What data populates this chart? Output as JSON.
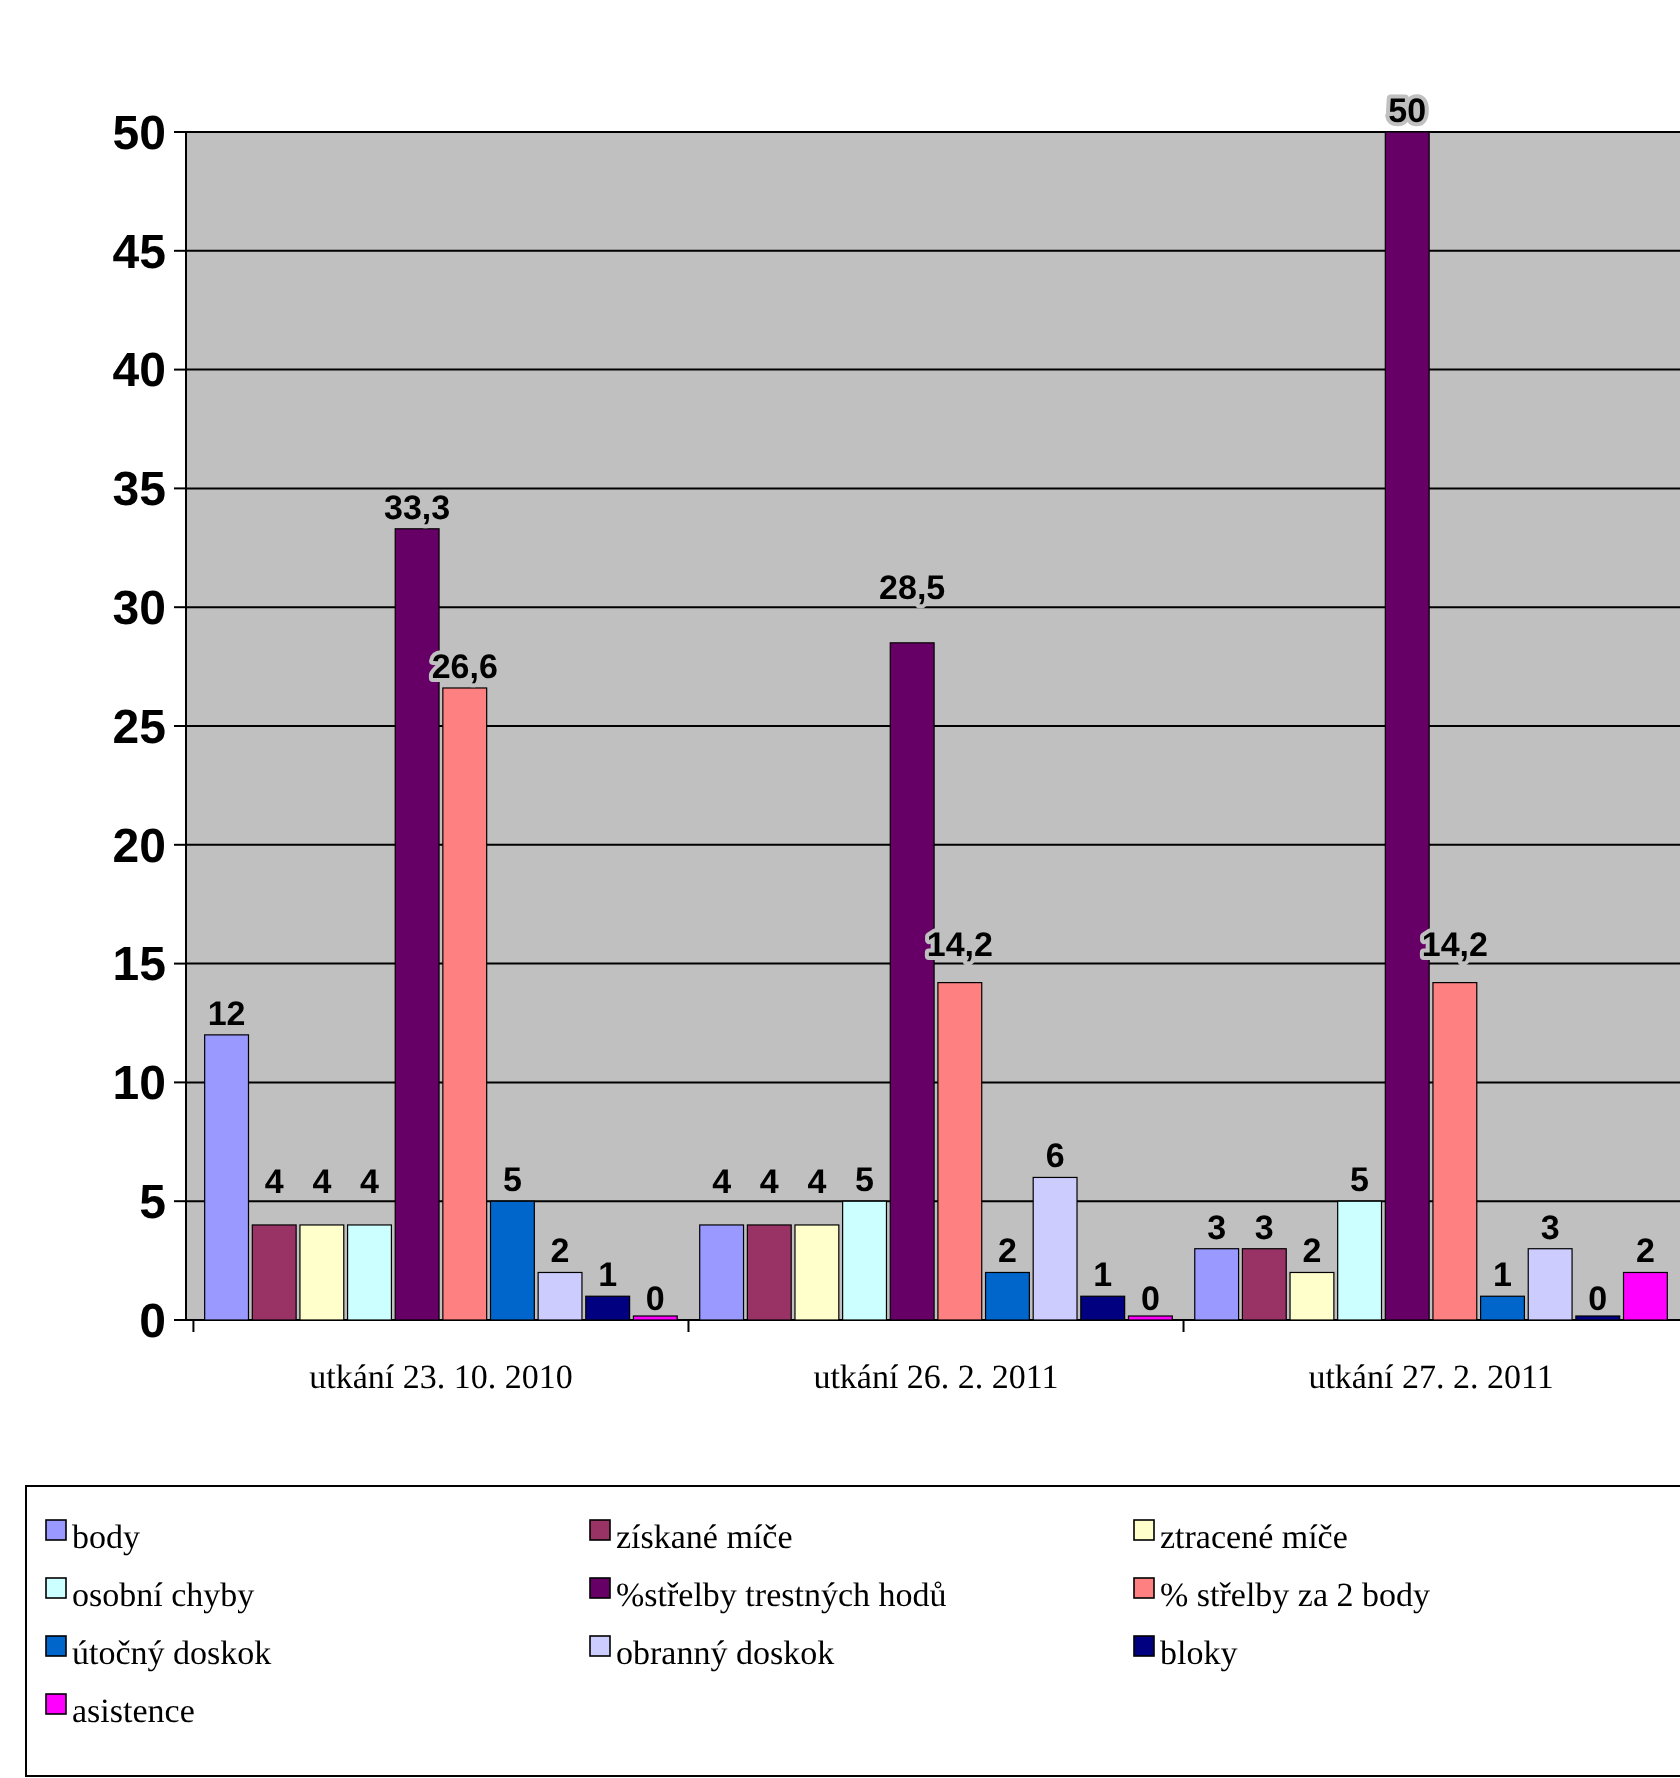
{
  "chart_data": {
    "type": "bar",
    "categories": [
      "utkání 23. 10. 2010",
      "utkání 26. 2. 2011",
      "utkání 27. 2. 2011"
    ],
    "ylim": [
      0,
      50
    ],
    "yticks": [
      0,
      5,
      10,
      15,
      20,
      25,
      30,
      35,
      40,
      45,
      50
    ],
    "grid": "y",
    "legend": "bottom",
    "series": [
      {
        "name": "body",
        "color": "#9999ff",
        "values": [
          12,
          4,
          3
        ],
        "value_labels": [
          "12",
          "4",
          "3"
        ]
      },
      {
        "name": "získané míče",
        "color": "#993366",
        "values": [
          4,
          4,
          3
        ],
        "value_labels": [
          "4",
          "4",
          "3"
        ]
      },
      {
        "name": "ztracené míče",
        "color": "#ffffcc",
        "values": [
          4,
          4,
          2
        ],
        "value_labels": [
          "4",
          "4",
          "2"
        ]
      },
      {
        "name": "osobní chyby",
        "color": "#ccffff",
        "values": [
          4,
          5,
          5
        ],
        "value_labels": [
          "4",
          "5",
          "5"
        ]
      },
      {
        "name": "%střelby trestných hodů",
        "color": "#660066",
        "values": [
          33.3,
          28.5,
          50
        ],
        "value_labels": [
          "33,3",
          "28,5",
          "50"
        ]
      },
      {
        "name": "% střelby za 2 body",
        "color": "#ff8080",
        "values": [
          26.6,
          14.2,
          14.2
        ],
        "value_labels": [
          "26,6",
          "14,2",
          "14,2"
        ]
      },
      {
        "name": "útočný doskok",
        "color": "#0066cc",
        "values": [
          5,
          2,
          1
        ],
        "value_labels": [
          "5",
          "2",
          "1"
        ]
      },
      {
        "name": "obranný doskok",
        "color": "#ccccff",
        "values": [
          2,
          6,
          3
        ],
        "value_labels": [
          "2",
          "6",
          "3"
        ]
      },
      {
        "name": "bloky",
        "color": "#000080",
        "values": [
          1,
          1,
          0
        ],
        "value_labels": [
          "1",
          "1",
          "0"
        ]
      },
      {
        "name": "asistence",
        "color": "#ff00ff",
        "values": [
          0,
          0,
          2
        ],
        "value_labels": [
          "0",
          "0",
          "2"
        ]
      }
    ]
  }
}
